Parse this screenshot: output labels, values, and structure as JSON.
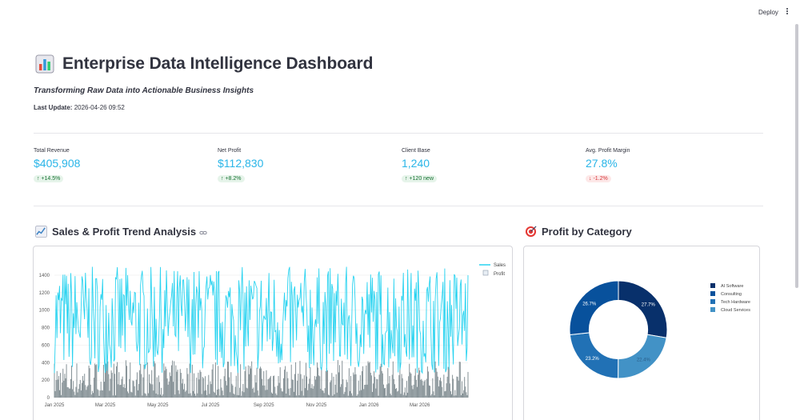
{
  "topbar": {
    "deploy_label": "Deploy"
  },
  "header": {
    "title": "Enterprise Data Intelligence Dashboard",
    "subtitle": "Transforming Raw Data into Actionable Business Insights",
    "last_update_label": "Last Update:",
    "last_update_value": "2026-04-26 09:52"
  },
  "metrics": [
    {
      "label": "Total Revenue",
      "value": "$405,908",
      "delta": "↑ +14.5%",
      "direction": "up"
    },
    {
      "label": "Net Profit",
      "value": "$112,830",
      "delta": "↑ +8.2%",
      "direction": "up"
    },
    {
      "label": "Client Base",
      "value": "1,240",
      "delta": "↑ +120 new",
      "direction": "up"
    },
    {
      "label": "Avg. Profit Margin",
      "value": "27.8%",
      "delta": "↓ -1.2%",
      "direction": "down"
    }
  ],
  "sections": {
    "trend_title": "Sales & Profit Trend Analysis",
    "category_title": "Profit by Category"
  },
  "chart_data": [
    {
      "type": "line",
      "title": "",
      "ylim": [
        0,
        1500
      ],
      "yticks": [
        0,
        200,
        400,
        600,
        800,
        1000,
        1200,
        1400
      ],
      "xticks": [
        "Jan 2025",
        "Mar 2025",
        "May 2025",
        "Jul 2025",
        "Sep 2025",
        "Nov 2025",
        "Jan 2026",
        "Mar 2026"
      ],
      "x_range": [
        "2025-01-01",
        "2026-04-26"
      ],
      "series": [
        {
          "name": "Sales",
          "kind": "line",
          "color": "#29d3f0",
          "value_range": [
            280,
            1500
          ]
        },
        {
          "name": "Profit",
          "kind": "bar",
          "color": "#6c7a80",
          "value_range": [
            20,
            430
          ]
        }
      ],
      "legend": "top-right"
    },
    {
      "type": "pie",
      "title": "",
      "hole": 0.6,
      "labels": [
        "AI Software",
        "Consulting",
        "Tech Hardware",
        "Cloud Services"
      ],
      "values": [
        27.7,
        22.4,
        23.2,
        26.7
      ],
      "display_values": [
        "27.7%",
        "22.4%",
        "23.2%",
        "26.7%"
      ],
      "colors": [
        "#08306b",
        "#4292c6",
        "#2171b5",
        "#08519c"
      ],
      "legend_colors": [
        "#08306b",
        "#08519c",
        "#2171b5",
        "#4292c6"
      ],
      "legend": "right"
    }
  ]
}
